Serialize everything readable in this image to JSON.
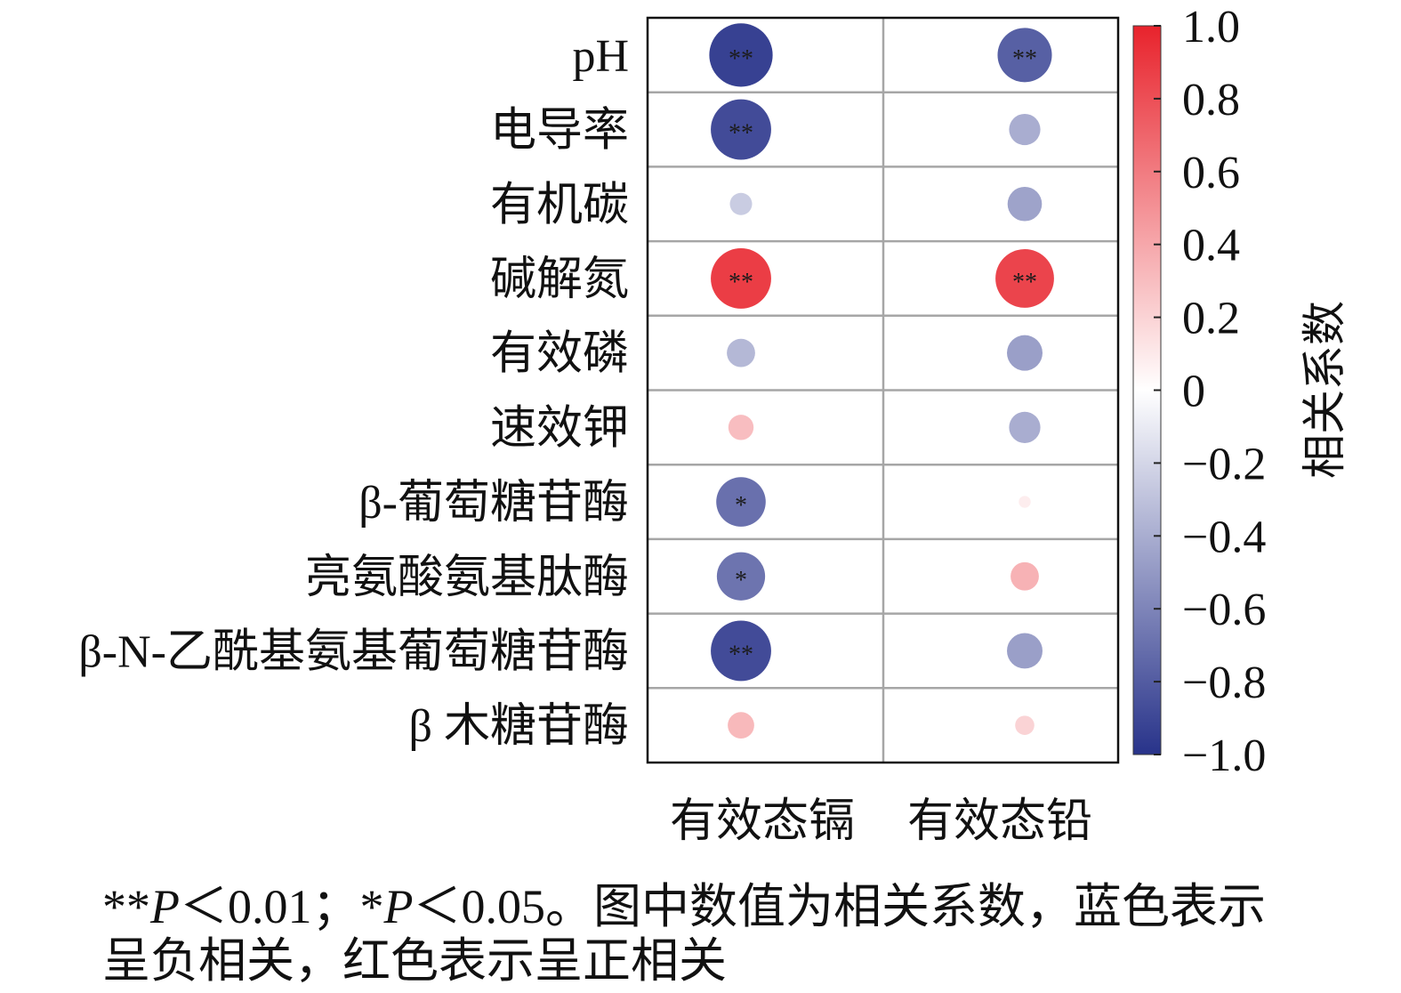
{
  "chart_data": {
    "type": "heatmap",
    "rows": [
      "pH",
      "电导率",
      "有机碳",
      "碱解氮",
      "有效磷",
      "速效钾",
      "β-葡萄糖苷酶",
      "亮氨酸氨基肽酶",
      "β-N-乙酰基氨基葡萄糖苷酶",
      "β 木糖苷酶"
    ],
    "columns": [
      "有效态镉",
      "有效态铅"
    ],
    "values": [
      [
        -0.93,
        -0.78
      ],
      [
        -0.88,
        -0.4
      ],
      [
        -0.25,
        -0.45
      ],
      [
        0.88,
        0.85
      ],
      [
        -0.35,
        -0.47
      ],
      [
        0.3,
        -0.4
      ],
      [
        -0.7,
        0.08
      ],
      [
        -0.68,
        0.35
      ],
      [
        -0.88,
        -0.47
      ],
      [
        0.32,
        0.2
      ]
    ],
    "significance": [
      [
        "**",
        "**"
      ],
      [
        "**",
        ""
      ],
      [
        "",
        ""
      ],
      [
        "**",
        "**"
      ],
      [
        "",
        ""
      ],
      [
        "",
        ""
      ],
      [
        "*",
        ""
      ],
      [
        "*",
        ""
      ],
      [
        "**",
        ""
      ],
      [
        "",
        ""
      ]
    ],
    "colorbar": {
      "title": "相关系数",
      "range": [
        -1,
        1
      ],
      "ticks": [
        1.0,
        0.8,
        0.6,
        0.4,
        0.2,
        0,
        -0.2,
        -0.4,
        -0.6,
        -0.8,
        -1.0
      ],
      "tick_labels": [
        "1.0",
        "0.8",
        "0.6",
        "0.4",
        "0.2",
        "0",
        "−0.2",
        "−0.4",
        "−0.6",
        "−0.8",
        "−1.0"
      ]
    },
    "colors": {
      "positive": "#e8232c",
      "neutral": "#ffffff",
      "negative": "#28338a",
      "grid": "#a6a6a6",
      "frame": "#111111"
    }
  },
  "caption": {
    "line1": [
      "**",
      "P",
      "＜0.01；*",
      "P",
      "＜0.05。图中数值为相关系数，蓝色表示"
    ],
    "line2": "呈负相关，红色表示呈正相关"
  }
}
